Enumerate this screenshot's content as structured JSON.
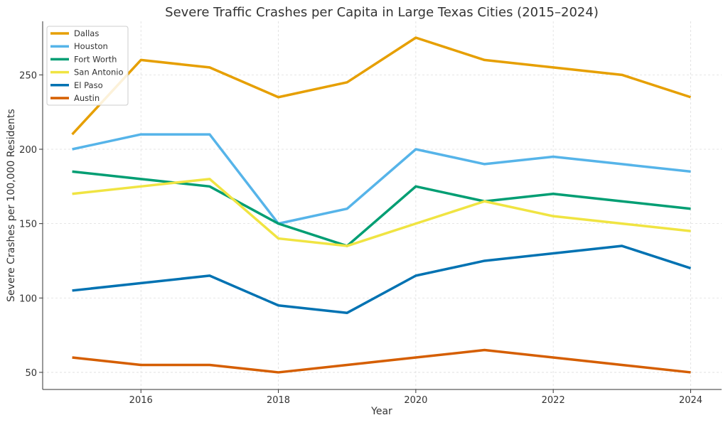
{
  "chart_data": {
    "type": "line",
    "title": "Severe Traffic Crashes per Capita in Large Texas Cities (2015–2024)",
    "xlabel": "Year",
    "ylabel": "Severe Crashes per 100,000 Residents",
    "x": [
      2015,
      2016,
      2017,
      2018,
      2019,
      2020,
      2021,
      2022,
      2023,
      2024
    ],
    "xticks": [
      2016,
      2018,
      2020,
      2022,
      2024
    ],
    "yticks": [
      50,
      100,
      150,
      200,
      250
    ],
    "xlim": [
      2014.57,
      2024.45
    ],
    "ylim": [
      38.5,
      286
    ],
    "grid": true,
    "legend_position": "top-left",
    "series": [
      {
        "name": "Dallas",
        "color": "#E69F00",
        "values": [
          210,
          260,
          255,
          235,
          245,
          275,
          260,
          255,
          250,
          235
        ]
      },
      {
        "name": "Houston",
        "color": "#56B4E9",
        "values": [
          200,
          210,
          210,
          150,
          160,
          200,
          190,
          195,
          190,
          185
        ]
      },
      {
        "name": "Fort Worth",
        "color": "#009E73",
        "values": [
          185,
          180,
          175,
          150,
          135,
          175,
          165,
          170,
          165,
          160
        ]
      },
      {
        "name": "San Antonio",
        "color": "#F0E442",
        "values": [
          170,
          175,
          180,
          140,
          135,
          150,
          165,
          155,
          150,
          145
        ]
      },
      {
        "name": "El Paso",
        "color": "#0072B2",
        "values": [
          105,
          110,
          115,
          95,
          90,
          115,
          125,
          130,
          135,
          120
        ]
      },
      {
        "name": "Austin",
        "color": "#D55E00",
        "values": [
          60,
          55,
          55,
          50,
          55,
          60,
          65,
          60,
          55,
          50
        ]
      }
    ]
  }
}
